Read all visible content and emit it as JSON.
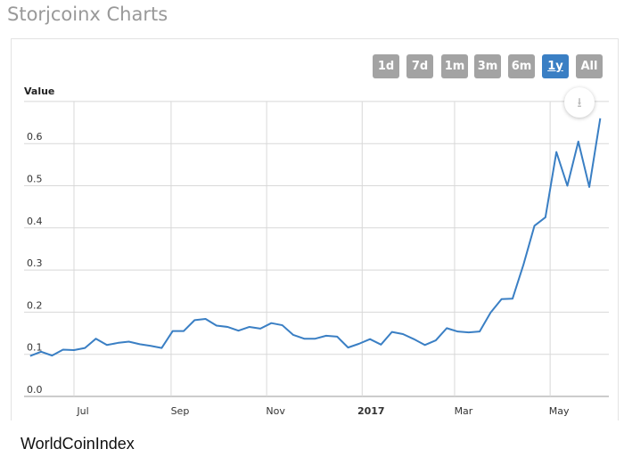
{
  "header": {
    "title": "Storjcoinx Charts"
  },
  "range_buttons": [
    {
      "label": "1d"
    },
    {
      "label": "7d"
    },
    {
      "label": "1m"
    },
    {
      "label": "3m"
    },
    {
      "label": "6m"
    },
    {
      "label": "1y",
      "active": true
    },
    {
      "label": "All"
    }
  ],
  "footer": {
    "text": "WorldCoinIndex"
  },
  "download_icon": "download-icon",
  "colors": {
    "line": "#3a7fc4",
    "active_button": "#3a7fc4",
    "button": "#a3a3a3"
  },
  "chart_data": {
    "type": "line",
    "ylabel": "Value",
    "ylim": [
      0,
      0.7
    ],
    "yticks": [
      "0.0",
      "0.1",
      "0.2",
      "0.3",
      "0.4",
      "0.5",
      "0.6"
    ],
    "xticks": [
      {
        "label": "Jul",
        "date": "2016-07-01"
      },
      {
        "label": "Sep",
        "date": "2016-09-01"
      },
      {
        "label": "Nov",
        "date": "2016-11-01"
      },
      {
        "label": "2017",
        "date": "2017-01-01",
        "bold": true
      },
      {
        "label": "Mar",
        "date": "2017-03-01"
      },
      {
        "label": "May",
        "date": "2017-05-01"
      }
    ],
    "grid": true,
    "x": [
      "2016-06-03",
      "2016-06-10",
      "2016-06-17",
      "2016-06-24",
      "2016-07-01",
      "2016-07-08",
      "2016-07-15",
      "2016-07-22",
      "2016-07-29",
      "2016-08-05",
      "2016-08-12",
      "2016-08-19",
      "2016-08-26",
      "2016-09-02",
      "2016-09-09",
      "2016-09-16",
      "2016-09-23",
      "2016-09-30",
      "2016-10-07",
      "2016-10-14",
      "2016-10-21",
      "2016-10-28",
      "2016-11-04",
      "2016-11-11",
      "2016-11-18",
      "2016-11-25",
      "2016-12-02",
      "2016-12-09",
      "2016-12-16",
      "2016-12-23",
      "2016-12-30",
      "2017-01-06",
      "2017-01-13",
      "2017-01-20",
      "2017-01-27",
      "2017-02-03",
      "2017-02-10",
      "2017-02-17",
      "2017-02-24",
      "2017-03-03",
      "2017-03-10",
      "2017-03-17",
      "2017-03-24",
      "2017-03-31",
      "2017-04-07",
      "2017-04-14",
      "2017-04-21",
      "2017-04-28",
      "2017-05-05",
      "2017-05-12",
      "2017-05-19",
      "2017-05-26",
      "2017-06-02"
    ],
    "values": [
      0.096,
      0.106,
      0.097,
      0.111,
      0.11,
      0.115,
      0.137,
      0.122,
      0.127,
      0.13,
      0.124,
      0.12,
      0.115,
      0.155,
      0.155,
      0.181,
      0.184,
      0.168,
      0.165,
      0.156,
      0.165,
      0.161,
      0.174,
      0.169,
      0.146,
      0.137,
      0.137,
      0.144,
      0.142,
      0.116,
      0.125,
      0.136,
      0.123,
      0.153,
      0.148,
      0.136,
      0.122,
      0.133,
      0.162,
      0.154,
      0.152,
      0.154,
      0.199,
      0.231,
      0.232,
      0.313,
      0.405,
      0.425,
      0.58,
      0.5,
      0.605,
      0.497,
      0.66
    ]
  }
}
